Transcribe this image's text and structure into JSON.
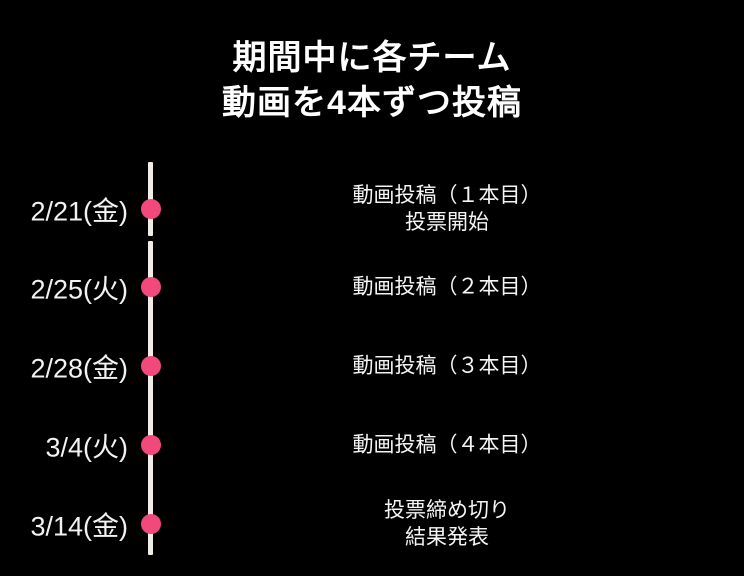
{
  "title": {
    "line1": "期間中に各チーム",
    "line2": "動画を4本ずつ投稿"
  },
  "colors": {
    "background": "#000000",
    "accent_pink": "#F2497D",
    "line": "#F0EDE6",
    "text": "#FFFFFF"
  },
  "timeline": {
    "events": [
      {
        "date": "2/21(金)",
        "line1": "動画投稿（１本目）",
        "line2": "投票開始"
      },
      {
        "date": "2/25(火)",
        "line1": "動画投稿（２本目）",
        "line2": ""
      },
      {
        "date": "2/28(金)",
        "line1": "動画投稿（３本目）",
        "line2": ""
      },
      {
        "date": "3/4(火)",
        "line1": "動画投稿（４本目）",
        "line2": ""
      },
      {
        "date": "3/14(金)",
        "line1": "投票締め切り",
        "line2": "結果発表"
      }
    ]
  }
}
